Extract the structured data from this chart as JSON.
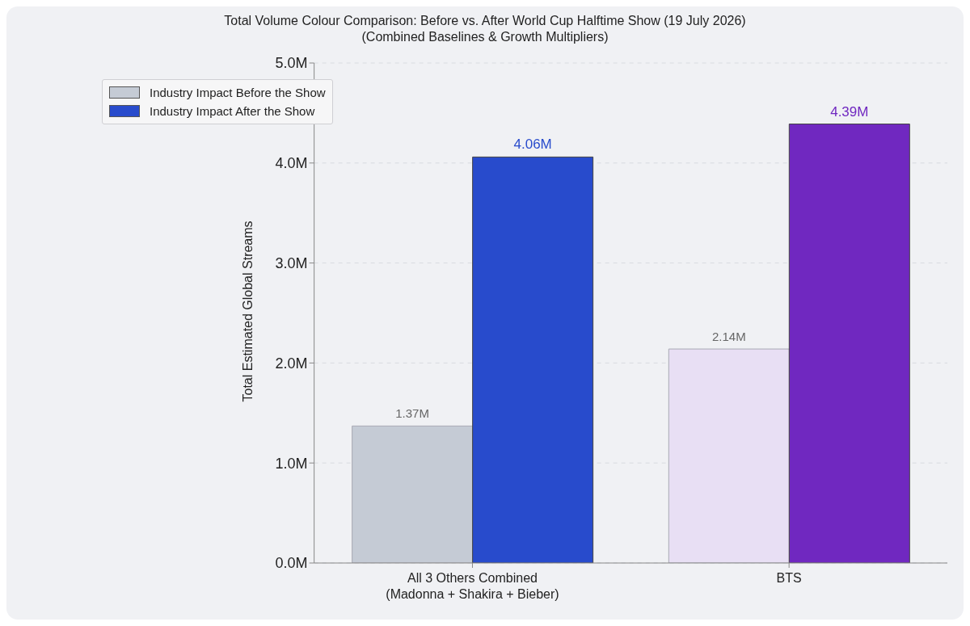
{
  "chart_data": {
    "type": "bar",
    "title": "Total Volume Colour Comparison: Before vs. After World Cup Halftime Show (19 July 2026)",
    "subtitle": "(Combined Baselines & Growth Multipliers)",
    "ylabel": "Total Estimated Global Streams",
    "categories": [
      "All 3 Others Combined\n(Madonna + Shakira + Bieber)",
      "BTS"
    ],
    "series": [
      {
        "name": "Industry Impact Before the Show",
        "color": "#c5cbd5",
        "colors": [
          "#c5cbd5",
          "#e8dff4"
        ],
        "values": [
          1.37,
          2.14
        ],
        "value_labels": [
          "1.37M",
          "2.14M"
        ]
      },
      {
        "name": "Industry Impact After the Show",
        "color": "#284bcc",
        "colors": [
          "#284bcc",
          "#7028c0"
        ],
        "values": [
          4.06,
          4.39
        ],
        "value_labels": [
          "4.06M",
          "4.39M"
        ]
      }
    ],
    "ylim": [
      0,
      5
    ],
    "yticks": [
      {
        "value": 0,
        "label": "0.0M"
      },
      {
        "value": 1,
        "label": "1.0M"
      },
      {
        "value": 2,
        "label": "2.0M"
      },
      {
        "value": 3,
        "label": "3.0M"
      },
      {
        "value": 4,
        "label": "4.0M"
      },
      {
        "value": 5,
        "label": "5.0M"
      }
    ],
    "grid": "y",
    "legend": "top left"
  }
}
